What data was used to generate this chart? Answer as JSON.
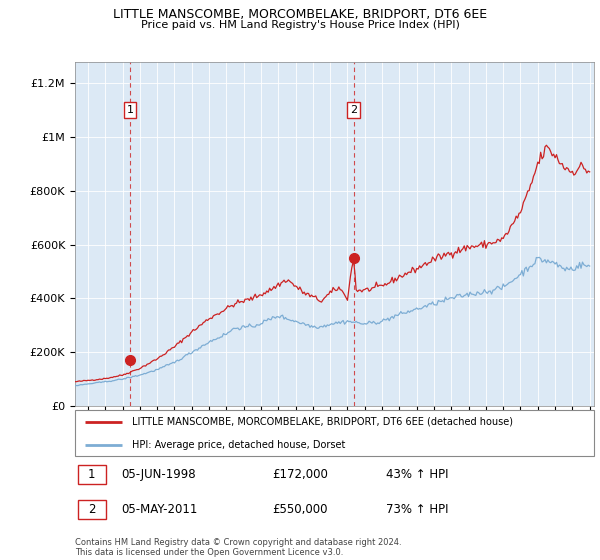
{
  "title1": "LITTLE MANSCOMBE, MORCOMBELAKE, BRIDPORT, DT6 6EE",
  "title2": "Price paid vs. HM Land Registry's House Price Index (HPI)",
  "ylabel_ticks": [
    "£0",
    "£200K",
    "£400K",
    "£600K",
    "£800K",
    "£1M",
    "£1.2M"
  ],
  "ytick_vals": [
    0,
    200000,
    400000,
    600000,
    800000,
    1000000,
    1200000
  ],
  "ylim": [
    0,
    1280000
  ],
  "xlim_start": 1995.25,
  "xlim_end": 2025.25,
  "red_line_color": "#cc2222",
  "blue_line_color": "#7dadd4",
  "plot_bg_color": "#dce9f5",
  "dashed_red_color": "#cc2222",
  "sale1_x": 1998.43,
  "sale1_y": 172000,
  "sale1_label": "1",
  "sale2_x": 2011.35,
  "sale2_y": 550000,
  "sale2_label": "2",
  "legend_line1": "LITTLE MANSCOMBE, MORCOMBELAKE, BRIDPORT, DT6 6EE (detached house)",
  "legend_line2": "HPI: Average price, detached house, Dorset",
  "table_row1": [
    "1",
    "05-JUN-1998",
    "£172,000",
    "43% ↑ HPI"
  ],
  "table_row2": [
    "2",
    "05-MAY-2011",
    "£550,000",
    "73% ↑ HPI"
  ],
  "footnote": "Contains HM Land Registry data © Crown copyright and database right 2024.\nThis data is licensed under the Open Government Licence v3.0."
}
